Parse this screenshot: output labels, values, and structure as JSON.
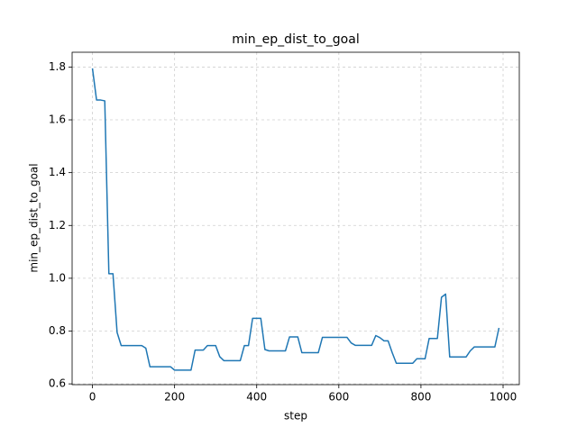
{
  "chart_data": {
    "type": "line",
    "title": "min_ep_dist_to_goal",
    "x_label": "step",
    "y_label": "min_ep_dist_to_goal",
    "x": [
      0,
      10,
      20,
      30,
      40,
      50,
      60,
      70,
      80,
      90,
      100,
      110,
      120,
      130,
      140,
      150,
      160,
      170,
      180,
      190,
      200,
      210,
      220,
      230,
      240,
      250,
      260,
      270,
      280,
      290,
      300,
      310,
      320,
      330,
      340,
      350,
      360,
      370,
      380,
      390,
      400,
      410,
      420,
      430,
      440,
      450,
      460,
      470,
      480,
      490,
      500,
      510,
      520,
      530,
      540,
      550,
      560,
      570,
      580,
      590,
      600,
      610,
      620,
      630,
      640,
      650,
      660,
      670,
      680,
      690,
      700,
      710,
      720,
      730,
      740,
      750,
      760,
      770,
      780,
      790,
      800,
      810,
      820,
      830,
      840,
      850,
      860,
      870,
      880,
      890,
      900,
      910,
      920,
      930,
      940,
      950,
      960,
      970,
      980,
      990
    ],
    "series": [
      {
        "name": "min_ep_dist_to_goal",
        "color": "#1f77b4",
        "values": [
          1.795,
          1.675,
          1.675,
          1.672,
          1.017,
          1.017,
          0.795,
          0.745,
          0.745,
          0.745,
          0.745,
          0.745,
          0.745,
          0.735,
          0.665,
          0.665,
          0.665,
          0.665,
          0.665,
          0.665,
          0.652,
          0.652,
          0.652,
          0.652,
          0.652,
          0.728,
          0.728,
          0.728,
          0.745,
          0.745,
          0.745,
          0.703,
          0.688,
          0.688,
          0.688,
          0.688,
          0.688,
          0.745,
          0.745,
          0.848,
          0.848,
          0.848,
          0.73,
          0.725,
          0.725,
          0.725,
          0.725,
          0.725,
          0.778,
          0.778,
          0.778,
          0.718,
          0.718,
          0.718,
          0.718,
          0.718,
          0.776,
          0.776,
          0.776,
          0.776,
          0.776,
          0.776,
          0.776,
          0.755,
          0.746,
          0.746,
          0.746,
          0.746,
          0.746,
          0.783,
          0.775,
          0.763,
          0.763,
          0.718,
          0.678,
          0.678,
          0.678,
          0.678,
          0.678,
          0.695,
          0.695,
          0.695,
          0.772,
          0.772,
          0.772,
          0.928,
          0.94,
          0.702,
          0.702,
          0.702,
          0.702,
          0.702,
          0.725,
          0.74,
          0.74,
          0.74,
          0.74,
          0.74,
          0.74,
          0.812
        ]
      }
    ],
    "xlim": [
      -49.5,
      1039.5
    ],
    "ylim": [
      0.597,
      1.856
    ],
    "xticks": [
      0,
      200,
      400,
      600,
      800,
      1000
    ],
    "yticks": [
      0.6,
      0.8,
      {
        "value": 1,
        "label": "1.0"
      },
      1.2,
      1.4,
      1.6,
      1.8
    ],
    "grid": true
  }
}
